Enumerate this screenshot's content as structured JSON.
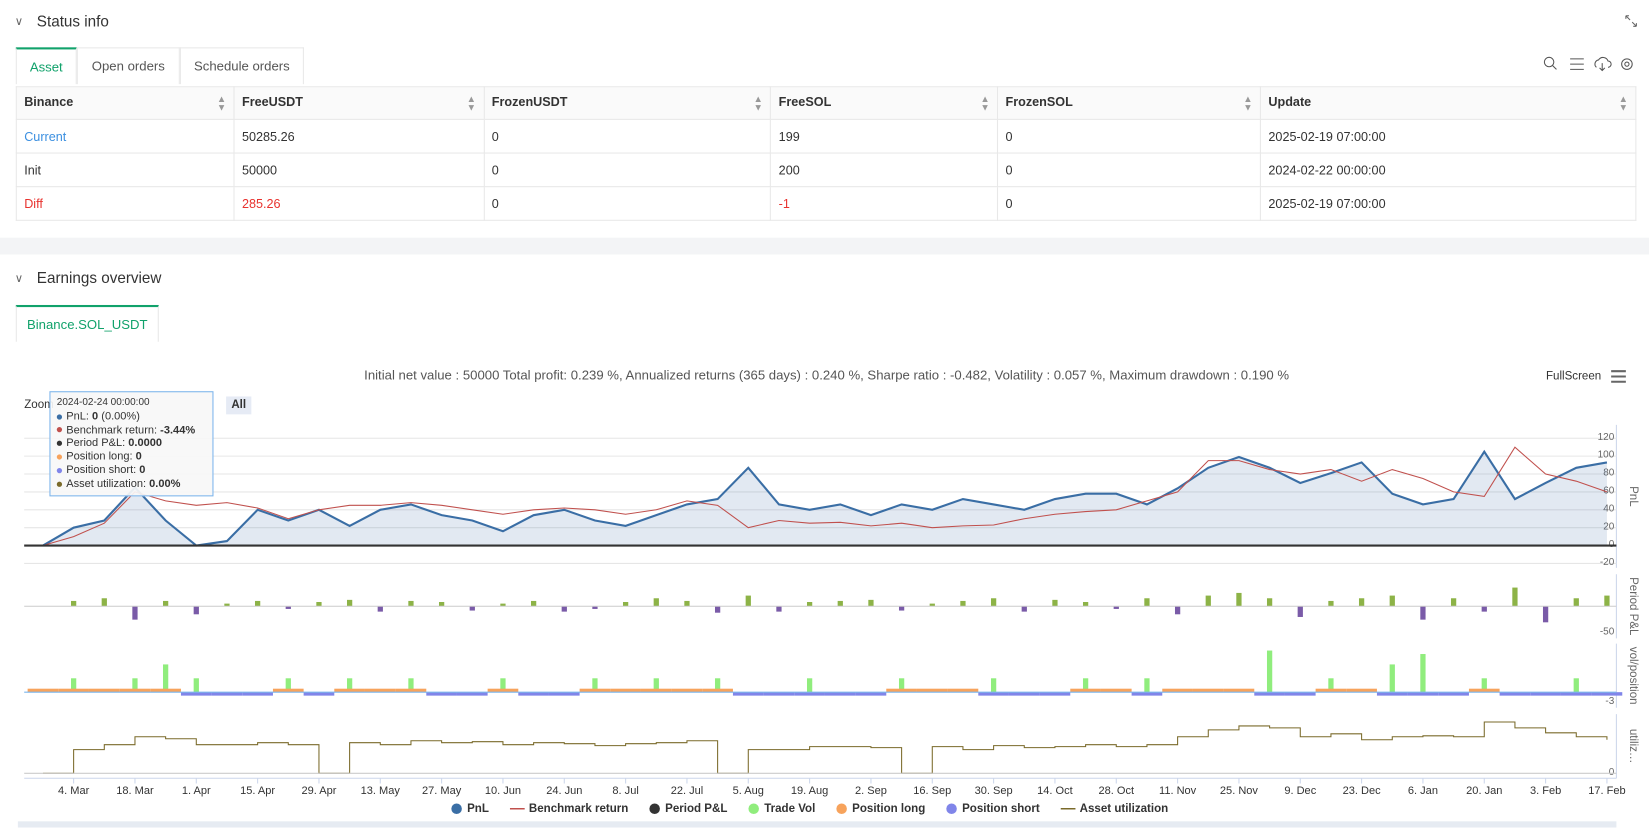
{
  "status": {
    "title": "Status info",
    "tabs": [
      "Asset",
      "Open orders",
      "Schedule orders"
    ],
    "table": {
      "headers": [
        "Binance",
        "FreeUSDT",
        "FrozenUSDT",
        "FreeSOL",
        "FrozenSOL",
        "Update"
      ],
      "rows": [
        [
          "Current",
          50285.26,
          0,
          199,
          0,
          "2025-02-19 07:00:00"
        ],
        [
          "Init",
          50000,
          0,
          200,
          0,
          "2024-02-22 00:00:00"
        ],
        [
          "Diff",
          285.26,
          0,
          -1,
          0,
          "2025-02-19 07:00:00"
        ]
      ]
    }
  },
  "earnings": {
    "title": "Earnings overview",
    "tab": "Binance.SOL_USDT",
    "summary": "Initial net value : 50000 Total profit: 0.239 %, Annualized returns (365 days) : 0.240 %, Sharpe ratio : -0.482, Volatility : 0.057 %, Maximum drawdown : 0.190 %",
    "fullscreen": "FullScreen",
    "zoom_label": "Zoom",
    "zoom_buttons": [
      "All"
    ],
    "tooltip": {
      "date": "2024-02-24 00:00:00",
      "rows": [
        {
          "label": "PnL: ",
          "value": "0",
          "extra": " (0.00%)",
          "color": "#3a6ea5"
        },
        {
          "label": "Benchmark return: ",
          "value": "-3.44%",
          "color": "#c0504d"
        },
        {
          "label": "Period P&L: ",
          "value": "0.0000",
          "color": "#333333"
        },
        {
          "label": "Position long: ",
          "value": "0",
          "color": "#f7a35c"
        },
        {
          "label": "Position short: ",
          "value": "0",
          "color": "#8085e9"
        },
        {
          "label": "Asset utilization: ",
          "value": "0.00%",
          "color": "#7a6a2a"
        }
      ]
    }
  },
  "chart_data": {
    "type": "line",
    "legend": "bottom",
    "categories": [
      null,
      "4. Mar",
      null,
      "18. Mar",
      null,
      "1. Apr",
      null,
      "15. Apr",
      null,
      "29. Apr",
      null,
      "13. May",
      null,
      "27. May",
      null,
      "10. Jun",
      null,
      "24. Jun",
      null,
      "8. Jul",
      null,
      "22. Jul",
      null,
      "5. Aug",
      null,
      "19. Aug",
      null,
      "2. Sep",
      null,
      "16. Sep",
      null,
      "30. Sep",
      null,
      "14. Oct",
      null,
      "28. Oct",
      null,
      "11. Nov",
      null,
      "25. Nov",
      null,
      "9. Dec",
      null,
      "23. Dec",
      null,
      "6. Jan",
      null,
      "20. Jan",
      null,
      "3. Feb",
      null,
      "17. Feb"
    ],
    "panels": [
      {
        "axis_title": "PnL",
        "ylim": [
          -25,
          135
        ],
        "yticks": [
          -20,
          0,
          20,
          40,
          60,
          80,
          100,
          120
        ],
        "grid": true,
        "series": [
          {
            "name": "PnL",
            "type": "area",
            "color": "#3a6ea5",
            "values": [
              0,
              20,
              28,
              65,
              28,
              0,
              5,
              40,
              28,
              40,
              22,
              40,
              46,
              34,
              28,
              16,
              34,
              40,
              28,
              22,
              34,
              46,
              52,
              87,
              46,
              40,
              46,
              34,
              46,
              40,
              52,
              46,
              40,
              52,
              58,
              58,
              46,
              64,
              87,
              99,
              87,
              70,
              81,
              93,
              58,
              46,
              52,
              105,
              52,
              70,
              87,
              93
            ]
          },
          {
            "name": "Benchmark return",
            "type": "line",
            "color": "#c0504d",
            "values": [
              0,
              10,
              25,
              60,
              50,
              45,
              48,
              42,
              30,
              40,
              45,
              45,
              48,
              45,
              40,
              35,
              40,
              42,
              40,
              35,
              40,
              50,
              45,
              20,
              28,
              25,
              26,
              22,
              25,
              20,
              22,
              23,
              30,
              35,
              38,
              40,
              50,
              60,
              95,
              95,
              85,
              80,
              85,
              72,
              85,
              75,
              60,
              55,
              110,
              80,
              72,
              60
            ]
          }
        ]
      },
      {
        "axis_title": "Period P&L",
        "ylim": [
          -60,
          60
        ],
        "yticks": [
          -50
        ],
        "grid": false,
        "series": [
          {
            "name": "Period P&L",
            "type": "bar",
            "color": "#333333",
            "positive_color": "#8db347",
            "negative_color": "#7a5ba8",
            "values": [
              0,
              10,
              15,
              -25,
              10,
              -15,
              5,
              10,
              -5,
              8,
              12,
              -10,
              10,
              8,
              -8,
              5,
              10,
              -10,
              -5,
              8,
              15,
              10,
              -12,
              20,
              -10,
              8,
              10,
              12,
              -8,
              5,
              10,
              15,
              -10,
              12,
              8,
              -5,
              15,
              -15,
              20,
              25,
              15,
              -20,
              10,
              15,
              20,
              -25,
              15,
              -10,
              35,
              -30,
              15,
              20
            ]
          }
        ]
      },
      {
        "axis_title": "vol/position",
        "ylim": [
          -4.5,
          14
        ],
        "yticks": [
          -3
        ],
        "grid": false,
        "series": [
          {
            "name": "Trade Vol",
            "type": "bar",
            "color": "#90ed7d",
            "values": [
              0,
              4,
              0,
              4,
              8,
              4,
              0,
              0,
              4,
              0,
              4,
              0,
              4,
              0,
              0,
              4,
              0,
              0,
              4,
              0,
              4,
              0,
              4,
              0,
              0,
              4,
              0,
              0,
              4,
              0,
              0,
              4,
              0,
              0,
              4,
              0,
              4,
              0,
              0,
              0,
              12,
              0,
              4,
              0,
              8,
              11,
              0,
              4,
              0,
              0,
              4,
              0
            ]
          },
          {
            "name": "Position long",
            "type": "band",
            "color": "#f7a35c",
            "values": [
              1,
              1,
              1,
              1,
              1,
              0,
              0,
              0,
              1,
              0,
              1,
              1,
              1,
              0,
              0,
              1,
              0,
              0,
              1,
              1,
              1,
              1,
              1,
              0,
              0,
              0,
              0,
              0,
              1,
              1,
              1,
              0,
              0,
              0,
              1,
              1,
              0,
              1,
              1,
              1,
              0,
              0,
              1,
              1,
              0,
              0,
              0,
              1,
              0,
              0,
              0,
              0
            ]
          },
          {
            "name": "Position short",
            "type": "band",
            "color": "#8085e9",
            "values": [
              0,
              0,
              0,
              0,
              0,
              -1,
              -1,
              -1,
              0,
              -1,
              0,
              0,
              0,
              -1,
              -1,
              0,
              -1,
              -1,
              0,
              0,
              0,
              0,
              0,
              -1,
              -1,
              -1,
              -1,
              -1,
              0,
              0,
              0,
              -1,
              -1,
              -1,
              0,
              0,
              -1,
              0,
              0,
              0,
              -1,
              -1,
              0,
              0,
              -1,
              -1,
              -1,
              0,
              -1,
              -1,
              -1,
              -1
            ]
          }
        ]
      },
      {
        "axis_title": "utiliz…",
        "ylim": [
          -5,
          60
        ],
        "yticks": [
          0
        ],
        "grid": false,
        "series": [
          {
            "name": "Asset utilization",
            "type": "step",
            "color": "#7a6a2a",
            "values": [
              0,
              24,
              29,
              37,
              35,
              29,
              29,
              31,
              29,
              0,
              31,
              29,
              33,
              31,
              32,
              29,
              31,
              30,
              28,
              30,
              31,
              33,
              0,
              24,
              24,
              27,
              27,
              26,
              0,
              27,
              24,
              28,
              26,
              27,
              29,
              27,
              29,
              37,
              44,
              48,
              46,
              37,
              40,
              34,
              37,
              38,
              37,
              52,
              46,
              41,
              37,
              34
            ]
          }
        ]
      }
    ]
  }
}
